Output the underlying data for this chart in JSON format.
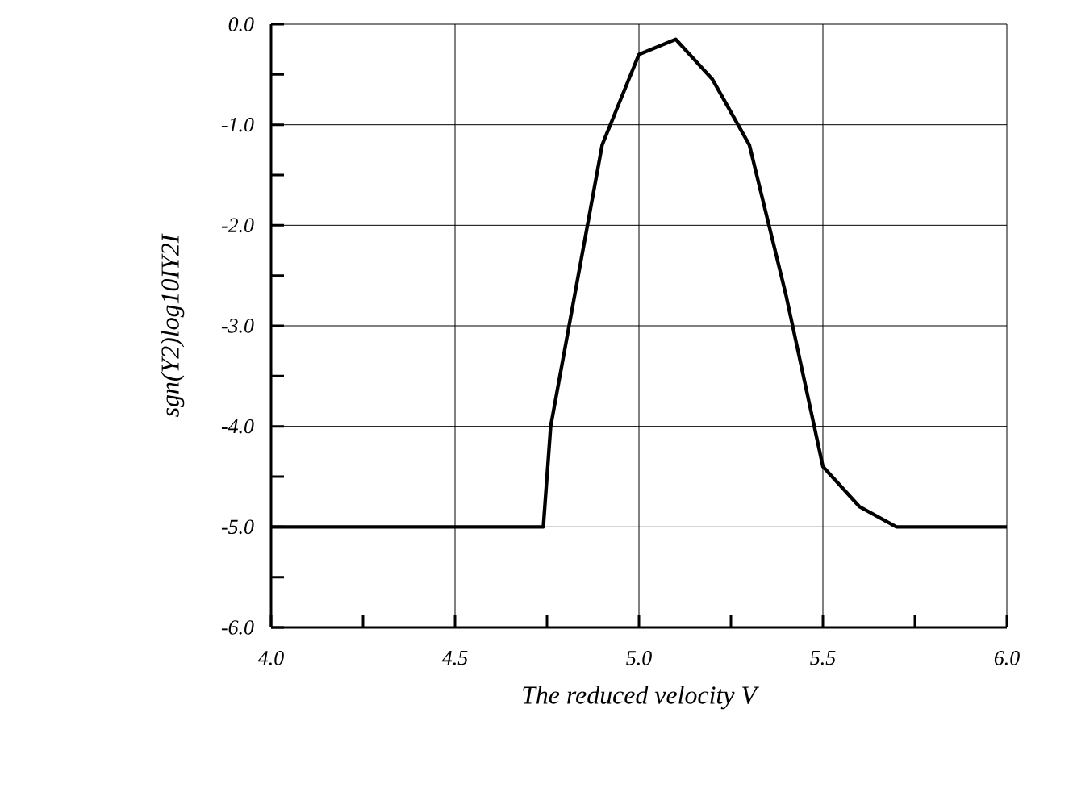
{
  "chart_data": {
    "type": "line",
    "xlabel": "The reduced velocity V",
    "ylabel": "sgn(Y2)log10IY2I",
    "series": [
      {
        "color": "#000000",
        "x": [
          4.0,
          4.74,
          4.76,
          4.9,
          5.0,
          5.1,
          5.2,
          5.3,
          5.4,
          5.5,
          5.6,
          5.7,
          6.0
        ],
        "values": [
          -5.0,
          -5.0,
          -4.0,
          -1.2,
          -0.3,
          -0.15,
          -0.55,
          -1.2,
          -2.7,
          -4.4,
          -4.8,
          -5.0,
          -5.0
        ]
      }
    ],
    "xlim": [
      4.0,
      6.0
    ],
    "ylim": [
      -6.0,
      0.0
    ],
    "xticks": [
      {
        "value": 4.0,
        "label": "4.0"
      },
      {
        "value": 4.5,
        "label": "4.5"
      },
      {
        "value": 5.0,
        "label": "5.0"
      },
      {
        "value": 5.5,
        "label": "5.5"
      },
      {
        "value": 6.0,
        "label": "6.0"
      }
    ],
    "yticks": [
      {
        "value": -6.0,
        "label": "-6.0"
      },
      {
        "value": -5.0,
        "label": "-5.0"
      },
      {
        "value": -4.0,
        "label": "-4.0"
      },
      {
        "value": -3.0,
        "label": "-3.0"
      },
      {
        "value": -2.0,
        "label": "-2.0"
      },
      {
        "value": -1.0,
        "label": "-1.0"
      },
      {
        "value": 0.0,
        "label": "0.0"
      }
    ],
    "grid": true,
    "marker": "none",
    "line_style": "solid"
  }
}
